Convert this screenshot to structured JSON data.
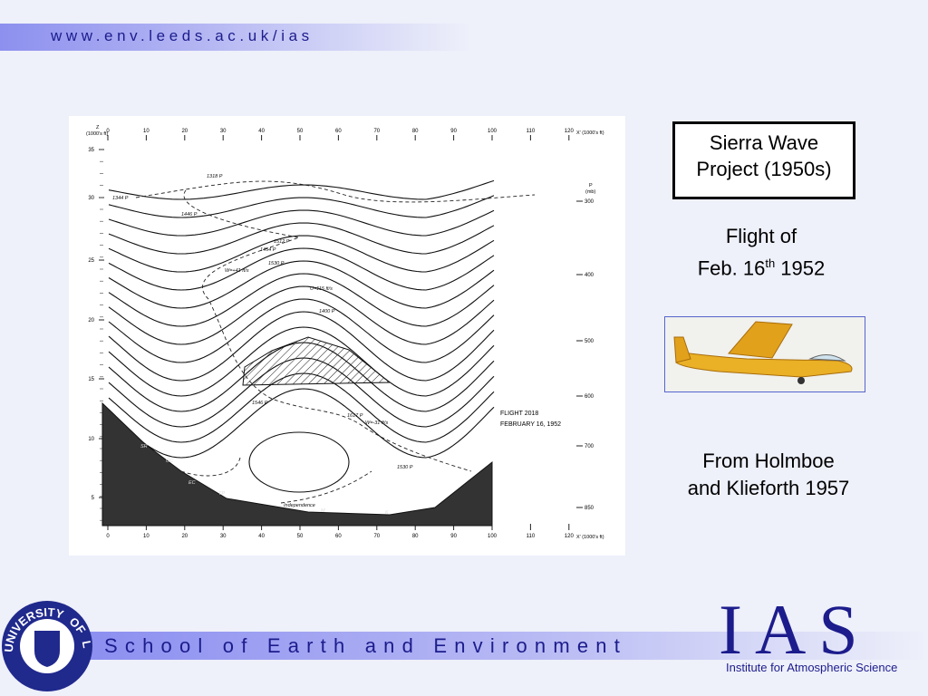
{
  "header": {
    "url": "www.env.leeds.ac.uk/ias"
  },
  "title_box": {
    "lines": [
      "Sierra Wave",
      "Project (1950s)"
    ]
  },
  "flight": {
    "line1": "Flight of",
    "date_pre": "Feb. 16",
    "date_sup": "th",
    "date_post": " 1952"
  },
  "credit": {
    "lines": [
      "From Holmboe",
      "and Klieforth 1957"
    ]
  },
  "figure": {
    "z_label": "Z",
    "y_unit": "(1000's ft)",
    "x_ticks": [
      "0",
      "10",
      "20",
      "30",
      "40",
      "50",
      "60",
      "70",
      "80",
      "90",
      "100",
      "110",
      "120"
    ],
    "x_unit": "X' (1000's ft)",
    "y_ticks": [
      "5",
      "10",
      "15",
      "20",
      "25",
      "30",
      "35"
    ],
    "p_label": "P",
    "p_unit": "(mb)",
    "p_ticks": [
      "300",
      "400",
      "500",
      "600",
      "700",
      "850"
    ],
    "flight_label": [
      "FLIGHT 2018",
      "FEBRUARY 16, 1952"
    ],
    "annotations": [
      "1318 P",
      "1344 P",
      "1446 P",
      "1512 P",
      "1454 P",
      "1530 P",
      "W=+41 ft/s",
      "U=115 ft/s",
      "1400 P",
      "1546 P",
      "1617 P",
      "W=-31 ft/s",
      "1530 P",
      "SR",
      "GC",
      "EC",
      "TP",
      "Independence",
      "M",
      "K"
    ]
  },
  "footer": {
    "school": "School of Earth and Environment",
    "logo": "IAS",
    "institute": "Institute for Atmospheric Science",
    "university": [
      "UNIVERSITY",
      "OF",
      "LEEDS"
    ]
  }
}
